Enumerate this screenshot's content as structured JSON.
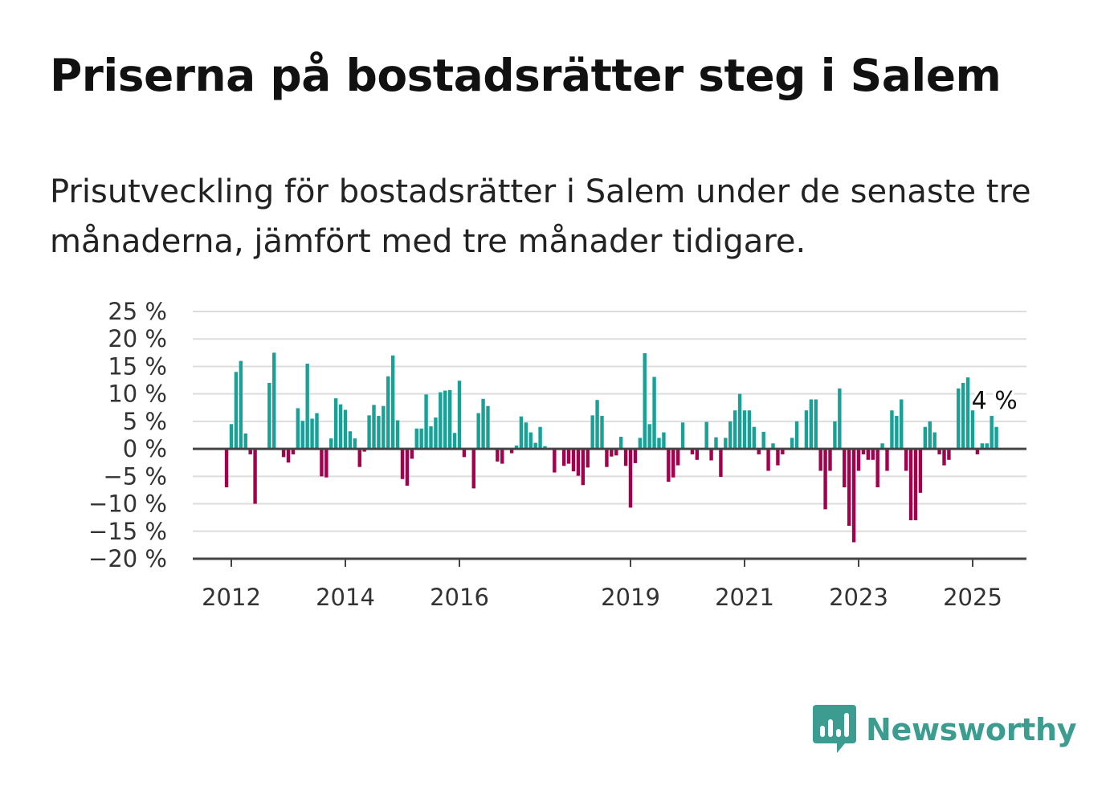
{
  "title": "Priserna på bostadsrätter steg i Salem",
  "subtitle": "Prisutveckling för bostadsrätter i Salem under de senaste tre månaderna, jämfört med tre månader tidigare.",
  "brand": {
    "name": "Newsworthy",
    "icon": "newsworthy-logo-icon",
    "color": "#3d9c90"
  },
  "chart_data": {
    "type": "bar",
    "title": "",
    "xlabel": "",
    "ylabel": "",
    "ylim": [
      -20,
      25
    ],
    "y_ticks": [
      25,
      20,
      15,
      10,
      5,
      0,
      -5,
      -10,
      -15,
      -20
    ],
    "y_tick_labels": [
      "25 %",
      "20 %",
      "15 %",
      "10 %",
      "5 %",
      "0 %",
      "−5 %",
      "−10 %",
      "−15 %",
      "−20 %"
    ],
    "x_ticks": [
      "2012",
      "2014",
      "2016",
      "2019",
      "2021",
      "2023",
      "2025"
    ],
    "grid": true,
    "colors": {
      "positive": "#17a197",
      "negative": "#a3004d",
      "zero_line": "#444444",
      "grid": "#dddddd"
    },
    "start": "2011-12",
    "last_label": "4 %",
    "values": [
      -7,
      4.5,
      14,
      16,
      2.8,
      -1,
      -10,
      0,
      0,
      12,
      17.5,
      0,
      -1.5,
      -2.5,
      -1,
      7.4,
      5.1,
      15.5,
      5.5,
      6.5,
      -5,
      -5.2,
      1.9,
      9.2,
      8.1,
      7.1,
      3.2,
      1.9,
      -3.3,
      -0.5,
      6.1,
      8,
      6,
      7.8,
      13.2,
      17,
      5.2,
      -5.5,
      -6.7,
      -1.8,
      3.7,
      3.7,
      9.9,
      4.1,
      5.7,
      10.3,
      10.6,
      10.7,
      2.9,
      12.4,
      -1.5,
      0,
      -7.2,
      6.5,
      9.1,
      7.8,
      0,
      -2.3,
      -2.7,
      0,
      -0.8,
      0.6,
      5.9,
      4.8,
      3,
      1.1,
      4,
      0.5,
      0,
      -4.3,
      0,
      -3.1,
      -2.7,
      -4.1,
      -4.9,
      -6.6,
      -3.4,
      6.1,
      8.9,
      6,
      -3.3,
      -1.4,
      -1.2,
      2.2,
      -3.1,
      -10.7,
      -2.6,
      2,
      17.4,
      4.5,
      13.1,
      2,
      3,
      -6,
      -5.2,
      -3,
      4.8,
      0,
      -1,
      -2,
      0,
      4.9,
      -2.1,
      2.1,
      -5.1,
      2,
      5,
      7,
      10,
      7,
      7,
      4,
      -1,
      3.1,
      -4,
      1,
      -3,
      -1,
      0,
      2,
      5,
      0,
      7,
      9,
      9,
      -4,
      -11,
      -4,
      5,
      11,
      -7,
      -14,
      -17,
      -4,
      -1,
      -2,
      -2,
      -7,
      1,
      -4,
      7,
      6,
      9,
      -4,
      -13,
      -13,
      -8,
      4,
      5,
      3,
      -1,
      -3,
      -2,
      0,
      11,
      12,
      13,
      7,
      -1,
      1,
      1,
      6,
      4
    ]
  }
}
